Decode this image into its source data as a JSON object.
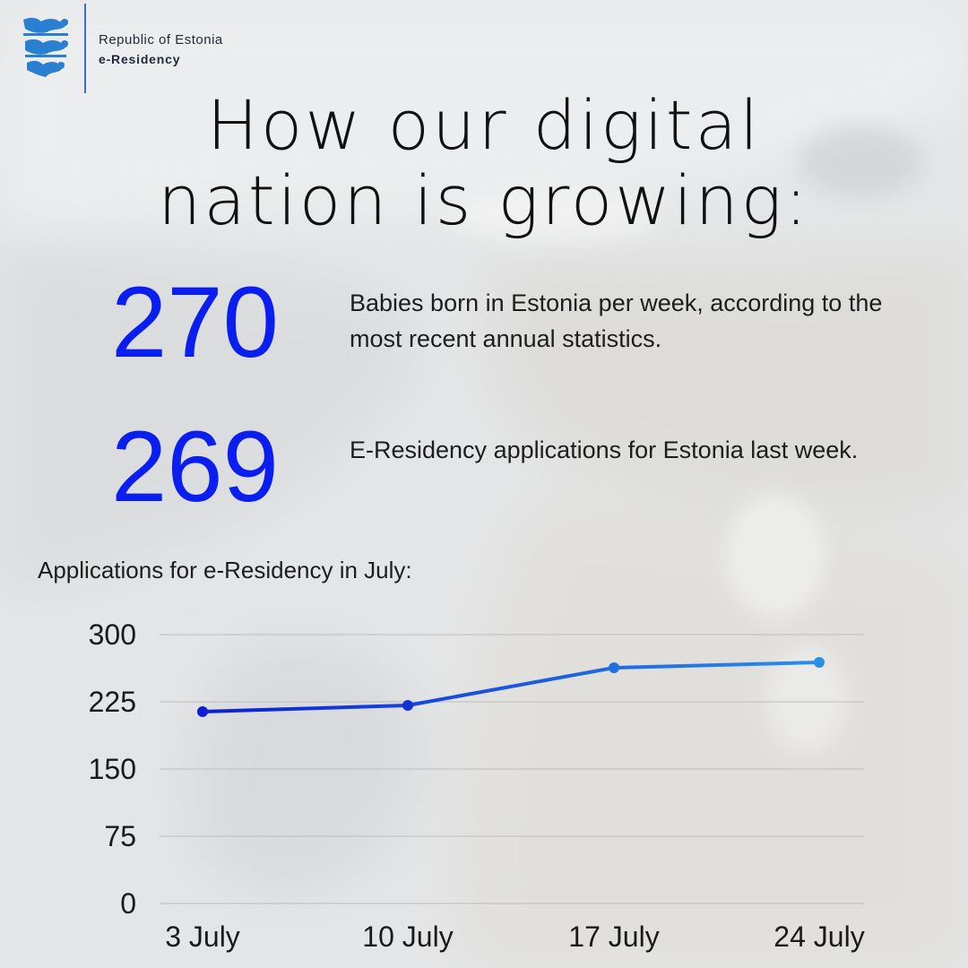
{
  "header": {
    "line1": "Republic of Estonia",
    "line2": "e-Residency"
  },
  "headline": {
    "line1": "How our digital",
    "line2": "nation is growing:"
  },
  "stats": [
    {
      "number": "270",
      "description": "Babies born in Estonia per week, according to the most recent annual statistics."
    },
    {
      "number": "269",
      "description": "E-Residency applications for Estonia last week."
    }
  ],
  "chart_title": "Applications for e-Residency in July:",
  "colors": {
    "accent": "#0a1ef0",
    "line_start": "#0b1fd6",
    "line_end": "#2b8fe8",
    "logo_blue": "#2a7fd1"
  },
  "chart_data": {
    "type": "line",
    "title": "Applications for e-Residency in July:",
    "categories": [
      "3 July",
      "10 July",
      "17 July",
      "24 July"
    ],
    "series": [
      {
        "values": [
          214,
          221,
          263,
          269
        ]
      }
    ],
    "ylim": [
      0,
      300
    ],
    "yticks": [
      0,
      75,
      150,
      225,
      300
    ],
    "grid": true,
    "xlabel": "",
    "ylabel": ""
  }
}
